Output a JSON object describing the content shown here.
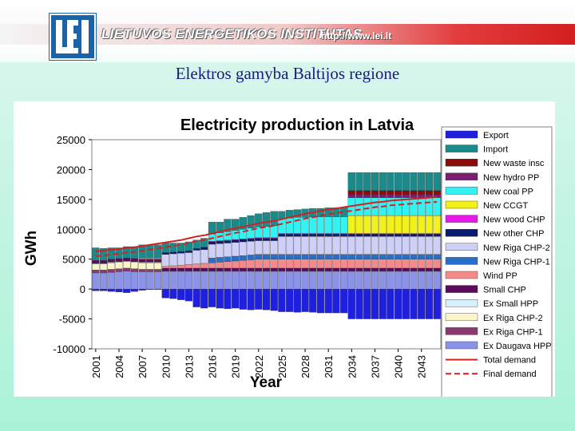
{
  "header": {
    "institute_name": "LIETUVOS ENERGETIKOS INSTITUTAS",
    "url": "http://www.lei.lt",
    "logo_letters": "LEI"
  },
  "slide": {
    "title": "Elektros gamyba Baltijos regione"
  },
  "colors": {
    "header_red": "#d41f1f",
    "logo_blue": "#1a63a8",
    "title_blue": "#1a1a80"
  },
  "chart_data": {
    "type": "bar",
    "stacked": true,
    "title": "Electricity production in Latvia",
    "xlabel": "Year",
    "ylabel": "GWh",
    "ylim": [
      -10000,
      25000
    ],
    "yticks": [
      -10000,
      -5000,
      0,
      5000,
      10000,
      15000,
      20000,
      25000
    ],
    "ytick_labels": [
      "-10000",
      "-5000",
      "0",
      "5000",
      "10000",
      "15000",
      "20000",
      "25000"
    ],
    "x_tick_labels": [
      "2001",
      "2004",
      "2007",
      "2010",
      "2013",
      "2016",
      "2019",
      "2022",
      "2025",
      "2028",
      "2031",
      "2034",
      "2037",
      "2040",
      "2043"
    ],
    "categories": [
      2001,
      2002,
      2003,
      2004,
      2005,
      2006,
      2007,
      2008,
      2009,
      2010,
      2011,
      2012,
      2013,
      2014,
      2015,
      2016,
      2017,
      2018,
      2019,
      2020,
      2021,
      2022,
      2023,
      2024,
      2025,
      2026,
      2027,
      2028,
      2029,
      2030,
      2031,
      2032,
      2033,
      2034,
      2035,
      2036,
      2037,
      2038,
      2039,
      2040,
      2041,
      2042,
      2043,
      2044,
      2045
    ],
    "grid": false,
    "legend_position": "right",
    "series": [
      {
        "name": "Export",
        "color": "#1f1fe0",
        "values": [
          -300,
          -300,
          -400,
          -500,
          -600,
          -400,
          -200,
          -100,
          -100,
          -1500,
          -1600,
          -1800,
          -2000,
          -3000,
          -3200,
          -3000,
          -3200,
          -3300,
          -3200,
          -3400,
          -3500,
          -3400,
          -3500,
          -3600,
          -3800,
          -3800,
          -3900,
          -3800,
          -3900,
          -4000,
          -4000,
          -4000,
          -4000,
          -5000,
          -5000,
          -5000,
          -5000,
          -5000,
          -5000,
          -5000,
          -5000,
          -5000,
          -5000,
          -5000,
          -5000
        ]
      },
      {
        "name": "Import",
        "color": "#1a8a8a",
        "values": [
          2100,
          2000,
          1900,
          1800,
          1900,
          2000,
          2200,
          2200,
          2200,
          1600,
          1500,
          1400,
          1500,
          1400,
          1500,
          2000,
          1800,
          2100,
          1900,
          2000,
          2100,
          2200,
          2300,
          2400,
          1200,
          1300,
          1300,
          1400,
          1400,
          1400,
          1500,
          1500,
          1500,
          3000,
          3000,
          3000,
          3000,
          3000,
          3000,
          3000,
          3000,
          3000,
          3000,
          3000,
          3000
        ]
      },
      {
        "name": "New waste insc",
        "color": "#8b0a0a",
        "values": [
          0,
          0,
          0,
          0,
          0,
          0,
          0,
          0,
          0,
          0,
          0,
          0,
          0,
          0,
          0,
          0,
          0,
          0,
          0,
          0,
          0,
          0,
          0,
          0,
          0,
          0,
          0,
          0,
          0,
          0,
          0,
          0,
          0,
          700,
          700,
          700,
          700,
          700,
          700,
          700,
          700,
          700,
          700,
          700,
          700
        ]
      },
      {
        "name": "New hydro PP",
        "color": "#7a1f6e",
        "values": [
          0,
          0,
          0,
          0,
          0,
          0,
          0,
          0,
          0,
          0,
          0,
          0,
          0,
          0,
          0,
          0,
          0,
          0,
          0,
          0,
          0,
          0,
          0,
          0,
          0,
          0,
          0,
          0,
          0,
          0,
          0,
          0,
          0,
          500,
          500,
          500,
          500,
          500,
          500,
          500,
          500,
          500,
          500,
          500,
          500
        ]
      },
      {
        "name": "New coal PP",
        "color": "#33f2f2",
        "values": [
          0,
          0,
          0,
          0,
          0,
          0,
          0,
          0,
          0,
          0,
          0,
          0,
          0,
          0,
          0,
          1200,
          1300,
          1400,
          1500,
          1600,
          1700,
          1800,
          1900,
          2000,
          2500,
          2600,
          2700,
          2700,
          2800,
          2800,
          2800,
          2800,
          2800,
          3000,
          3000,
          3000,
          3000,
          3000,
          3000,
          3000,
          3000,
          3000,
          3000,
          3000,
          3000
        ]
      },
      {
        "name": "New CCGT",
        "color": "#f2f219",
        "values": [
          0,
          0,
          0,
          0,
          0,
          0,
          0,
          0,
          0,
          0,
          0,
          0,
          0,
          0,
          0,
          0,
          0,
          0,
          0,
          0,
          0,
          0,
          0,
          0,
          0,
          0,
          0,
          0,
          0,
          0,
          0,
          0,
          0,
          3000,
          3000,
          3000,
          3000,
          3000,
          3000,
          3000,
          3000,
          3000,
          3000,
          3000,
          3000
        ]
      },
      {
        "name": "New wood CHP",
        "color": "#e619e6",
        "values": [
          0,
          0,
          0,
          0,
          0,
          0,
          0,
          0,
          0,
          0,
          0,
          0,
          0,
          0,
          0,
          100,
          100,
          100,
          100,
          100,
          100,
          100,
          100,
          100,
          100,
          100,
          100,
          100,
          100,
          100,
          100,
          100,
          100,
          100,
          100,
          100,
          100,
          100,
          100,
          100,
          100,
          100,
          100,
          100,
          100
        ]
      },
      {
        "name": "New other CHP",
        "color": "#0a1a6e",
        "values": [
          0,
          0,
          0,
          0,
          0,
          0,
          0,
          0,
          0,
          300,
          300,
          300,
          300,
          300,
          400,
          400,
          400,
          400,
          400,
          400,
          400,
          400,
          400,
          400,
          400,
          400,
          400,
          400,
          400,
          400,
          400,
          400,
          400,
          400,
          400,
          400,
          400,
          400,
          400,
          400,
          400,
          400,
          400,
          400,
          400
        ]
      },
      {
        "name": "New Riga CHP-2",
        "color": "#cfd0f7",
        "values": [
          0,
          0,
          0,
          0,
          0,
          0,
          0,
          0,
          0,
          2000,
          2000,
          2000,
          2000,
          2300,
          2300,
          2300,
          2300,
          2300,
          2300,
          2300,
          2300,
          2300,
          2300,
          2300,
          3000,
          3000,
          3000,
          3000,
          3000,
          3000,
          3000,
          3000,
          3000,
          3000,
          3000,
          3000,
          3000,
          3000,
          3000,
          3000,
          3000,
          3000,
          3000,
          3000,
          3000
        ]
      },
      {
        "name": "New Riga CHP-1",
        "color": "#2a6fc7",
        "values": [
          0,
          0,
          0,
          0,
          0,
          0,
          0,
          0,
          0,
          0,
          0,
          0,
          0,
          0,
          0,
          800,
          800,
          800,
          800,
          800,
          800,
          800,
          800,
          800,
          800,
          800,
          800,
          800,
          800,
          800,
          800,
          800,
          800,
          800,
          800,
          800,
          800,
          800,
          800,
          800,
          800,
          800,
          800,
          800,
          800
        ]
      },
      {
        "name": "Wind PP",
        "color": "#f58a8a",
        "values": [
          0,
          0,
          0,
          0,
          0,
          0,
          200,
          200,
          200,
          300,
          400,
          500,
          600,
          700,
          800,
          900,
          1000,
          1100,
          1200,
          1300,
          1400,
          1500,
          1500,
          1500,
          1500,
          1500,
          1500,
          1500,
          1500,
          1500,
          1500,
          1500,
          1500,
          1500,
          1500,
          1500,
          1500,
          1500,
          1500,
          1500,
          1500,
          1500,
          1500,
          1500,
          1500
        ]
      },
      {
        "name": "Small CHP",
        "color": "#5c0a5c",
        "values": [
          500,
          500,
          500,
          500,
          500,
          500,
          500,
          500,
          500,
          500,
          500,
          500,
          500,
          500,
          500,
          500,
          500,
          500,
          500,
          500,
          500,
          500,
          500,
          500,
          500,
          500,
          500,
          500,
          500,
          500,
          500,
          500,
          500,
          500,
          500,
          500,
          500,
          500,
          500,
          500,
          500,
          500,
          500,
          500,
          500
        ]
      },
      {
        "name": "Ex Small HPP",
        "color": "#d6f0ff",
        "values": [
          100,
          100,
          100,
          100,
          100,
          100,
          100,
          100,
          100,
          100,
          100,
          100,
          100,
          100,
          100,
          100,
          100,
          100,
          100,
          100,
          100,
          100,
          100,
          100,
          100,
          100,
          100,
          100,
          100,
          100,
          100,
          100,
          100,
          100,
          100,
          100,
          100,
          100,
          100,
          100,
          100,
          100,
          100,
          100,
          100
        ]
      },
      {
        "name": "Ex Riga CHP-2",
        "color": "#fbf6c7",
        "values": [
          1000,
          1000,
          1100,
          1100,
          1100,
          1100,
          1100,
          1100,
          1100,
          0,
          0,
          0,
          0,
          0,
          0,
          0,
          0,
          0,
          0,
          0,
          0,
          0,
          0,
          0,
          0,
          0,
          0,
          0,
          0,
          0,
          0,
          0,
          0,
          0,
          0,
          0,
          0,
          0,
          0,
          0,
          0,
          0,
          0,
          0,
          0
        ]
      },
      {
        "name": "Ex Riga CHP-1",
        "color": "#8a3a6e",
        "values": [
          500,
          500,
          500,
          500,
          500,
          500,
          400,
          400,
          400,
          0,
          0,
          0,
          0,
          0,
          0,
          0,
          0,
          0,
          0,
          0,
          0,
          0,
          0,
          0,
          0,
          0,
          0,
          0,
          0,
          0,
          0,
          0,
          0,
          0,
          0,
          0,
          0,
          0,
          0,
          0,
          0,
          0,
          0,
          0,
          0
        ]
      },
      {
        "name": "Ex Daugava HPP",
        "color": "#8a93e8",
        "values": [
          2700,
          2700,
          2800,
          2900,
          3000,
          2900,
          2900,
          2900,
          2900,
          2900,
          2900,
          2900,
          2900,
          2900,
          2900,
          2900,
          2900,
          2900,
          2900,
          2900,
          2900,
          2900,
          2900,
          2900,
          2900,
          2900,
          2900,
          2900,
          2900,
          2900,
          2900,
          2900,
          2900,
          2900,
          2900,
          2900,
          2900,
          2900,
          2900,
          2900,
          2900,
          2900,
          2900,
          2900,
          2900
        ]
      }
    ],
    "lines": [
      {
        "name": "Total demand",
        "color": "#d42020",
        "dash": "solid",
        "values": [
          6300,
          6400,
          6600,
          6700,
          6900,
          7000,
          7200,
          7400,
          7600,
          7800,
          8000,
          8200,
          8500,
          8800,
          9000,
          9300,
          9600,
          9900,
          10200,
          10400,
          10700,
          11000,
          11200,
          11400,
          11700,
          12000,
          12300,
          12600,
          12800,
          13100,
          13300,
          13500,
          13700,
          13900,
          14100,
          14300,
          14500,
          14600,
          14800,
          14900,
          15000,
          15100,
          15200,
          15300,
          15400
        ]
      },
      {
        "name": "Final demand",
        "color": "#d42020",
        "dash": "dashed",
        "values": [
          5500,
          5600,
          5800,
          5900,
          6100,
          6200,
          6400,
          6600,
          6800,
          7000,
          7200,
          7400,
          7700,
          8000,
          8200,
          8500,
          8800,
          9100,
          9400,
          9600,
          9900,
          10200,
          10400,
          10600,
          10900,
          11200,
          11500,
          11800,
          12000,
          12300,
          12500,
          12700,
          12900,
          13100,
          13300,
          13500,
          13700,
          13800,
          14000,
          14100,
          14200,
          14300,
          14400,
          14500,
          14600
        ]
      }
    ]
  }
}
